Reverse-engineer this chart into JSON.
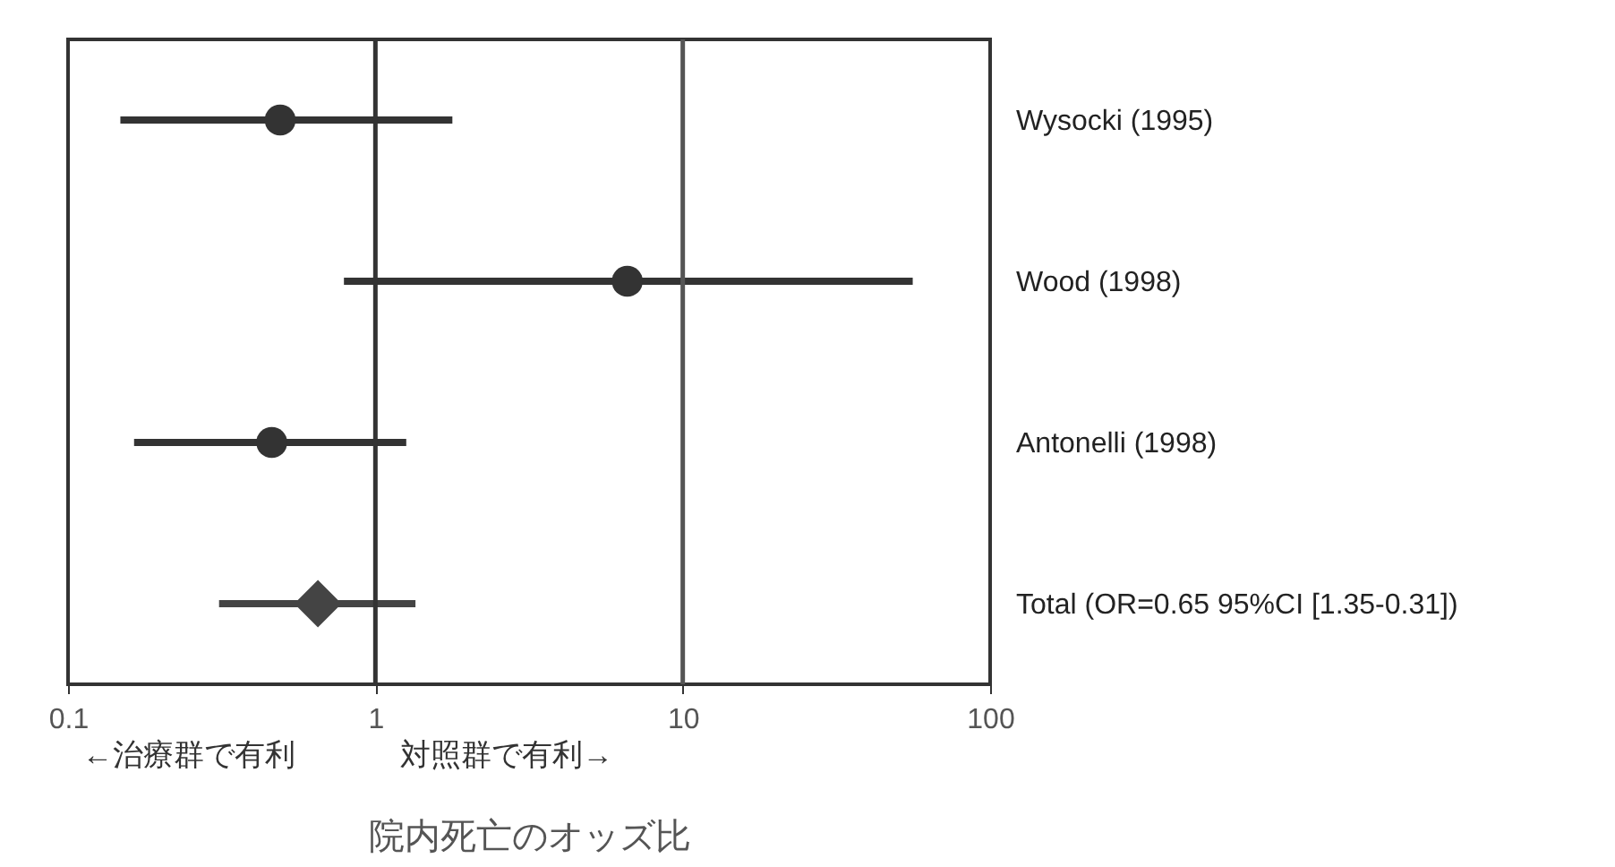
{
  "chart_data": {
    "type": "scatter",
    "orientation": "horizontal",
    "categories": [
      "Wysocki (1995)",
      "Wood (1998)",
      "Antonelli (1998)",
      "Total (OR=0.65 95%CI [1.35-0.31])"
    ],
    "series": [
      {
        "type": "scatter",
        "marker": "circle",
        "color": "#333333",
        "values": [
          0.49,
          6.6,
          0.46,
          null
        ],
        "errors": [
          [
            0.148,
            1.78
          ],
          [
            0.79,
            56
          ],
          [
            0.164,
            1.26
          ],
          null
        ]
      },
      {
        "type": "scatter",
        "marker": "diamond",
        "color": "#444444",
        "values": [
          null,
          null,
          null,
          0.65
        ],
        "errors": [
          null,
          null,
          null,
          [
            0.31,
            1.35
          ]
        ]
      }
    ],
    "xlim": [
      0.1,
      100
    ],
    "xticks": [
      0.1,
      1,
      10,
      100
    ],
    "log": "x",
    "ref_lines": [
      {
        "axis": "x",
        "value": 1,
        "color": "#333333"
      },
      {
        "axis": "x",
        "value": 10,
        "color": "#555555"
      }
    ],
    "xlabel": "院内死亡のオッズ比",
    "annotations": [
      "←治療群で有利",
      "対照群で有利→"
    ]
  }
}
